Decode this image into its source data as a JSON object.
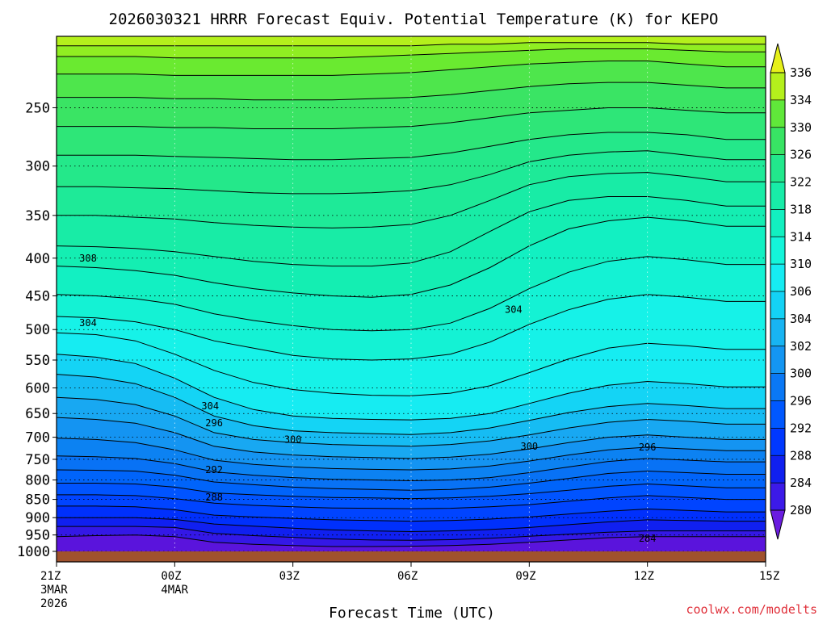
{
  "chart_data": {
    "type": "heatmap",
    "title": "2026030321 HRRR Forecast Equiv. Potential Temperature (K) for KEPO",
    "xlabel": "Forecast Time (UTC)",
    "ylabel": "",
    "credit": "coolwx.com/modelts",
    "x_ticks": [
      {
        "label": "21Z",
        "sub1": "3MAR",
        "sub2": "2026",
        "hour": 0
      },
      {
        "label": "00Z",
        "sub1": "4MAR",
        "sub2": "",
        "hour": 3
      },
      {
        "label": "03Z",
        "sub1": "",
        "sub2": "",
        "hour": 6
      },
      {
        "label": "06Z",
        "sub1": "",
        "sub2": "",
        "hour": 9
      },
      {
        "label": "09Z",
        "sub1": "",
        "sub2": "",
        "hour": 12
      },
      {
        "label": "12Z",
        "sub1": "",
        "sub2": "",
        "hour": 15
      },
      {
        "label": "15Z",
        "sub1": "",
        "sub2": "",
        "hour": 18
      }
    ],
    "xlim": [
      0,
      18
    ],
    "y_ticks": [
      250,
      300,
      350,
      400,
      450,
      500,
      550,
      600,
      650,
      700,
      750,
      800,
      850,
      900,
      950,
      1000
    ],
    "ylim": [
      1000,
      200
    ],
    "y_scale": "log-pressure",
    "colorbar": {
      "levels": [
        280,
        284,
        288,
        292,
        296,
        300,
        302,
        304,
        306,
        310,
        314,
        318,
        322,
        326,
        330,
        334,
        336
      ],
      "colors": [
        "#6a1ce0",
        "#3c1ae8",
        "#1020f0",
        "#0038ff",
        "#0058ff",
        "#0a78f5",
        "#1496f2",
        "#18b4f2",
        "#14d2f5",
        "#16ecf2",
        "#14f5da",
        "#12f0c0",
        "#18eca8",
        "#22e88c",
        "#38e464",
        "#60e83a",
        "#b4f01c"
      ],
      "extend": "both"
    },
    "contour_labels": [
      {
        "text": "308",
        "hour": 0.8,
        "p": 400
      },
      {
        "text": "304",
        "hour": 0.8,
        "p": 490
      },
      {
        "text": "304",
        "hour": 3.9,
        "p": 635
      },
      {
        "text": "304",
        "hour": 11.6,
        "p": 470
      },
      {
        "text": "300",
        "hour": 6.0,
        "p": 705
      },
      {
        "text": "300",
        "hour": 12.0,
        "p": 720
      },
      {
        "text": "296",
        "hour": 4.0,
        "p": 670
      },
      {
        "text": "296",
        "hour": 15.0,
        "p": 722
      },
      {
        "text": "292",
        "hour": 4.0,
        "p": 775
      },
      {
        "text": "288",
        "hour": 4.0,
        "p": 845
      },
      {
        "text": "284",
        "hour": 15.0,
        "p": 960
      }
    ],
    "grid": true,
    "legend": "right colorbar"
  }
}
